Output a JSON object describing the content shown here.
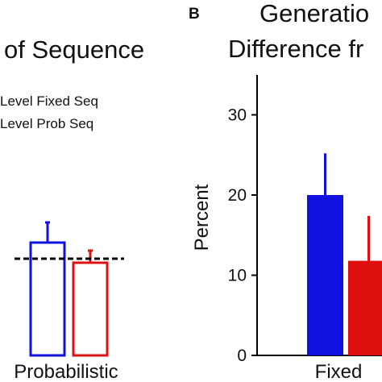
{
  "chart_data": [
    {
      "type": "bar",
      "title": "of Sequence",
      "legend": {
        "position": "top-left",
        "entries": [
          {
            "label": "Level Fixed Seq",
            "color": "#1010e0"
          },
          {
            "label": "Level Prob Seq",
            "color": "#e01010"
          }
        ]
      },
      "categories": [
        "Probabilistic"
      ],
      "series": [
        {
          "name": "Level Fixed Seq",
          "color": "#1010e0",
          "fill": "none",
          "values": [
            14
          ],
          "error": [
            2.5
          ]
        },
        {
          "name": "Level Prob Seq",
          "color": "#e01010",
          "fill": "none",
          "values": [
            11.5
          ],
          "error": [
            1.5
          ]
        }
      ],
      "reference_line": {
        "value": 12,
        "style": "dashed"
      },
      "ylim": [
        0,
        35
      ]
    },
    {
      "type": "bar",
      "panel_label": "B",
      "title_lines": [
        "Generatio",
        "Difference fr"
      ],
      "ylabel": "Percent",
      "yticks": [
        "0",
        "10",
        "20",
        "30"
      ],
      "ylim": [
        0,
        35
      ],
      "categories": [
        "Fixed"
      ],
      "series": [
        {
          "color": "#1010e0",
          "fill": "solid",
          "values": [
            20
          ],
          "error": [
            5.2
          ]
        },
        {
          "color": "#e01010",
          "fill": "solid",
          "values": [
            11.8
          ],
          "error": [
            5.6
          ]
        }
      ]
    }
  ]
}
